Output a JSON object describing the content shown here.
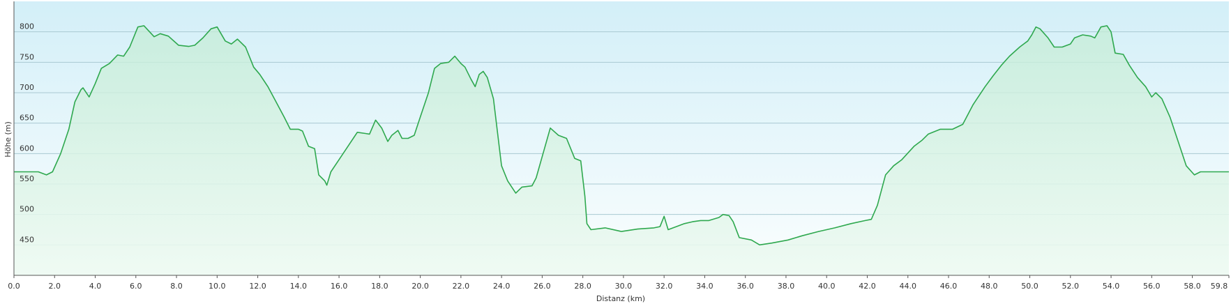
{
  "chart_data": {
    "type": "area",
    "xlabel": "Distanz  (km)",
    "ylabel": "Höhe (m)",
    "color": "#2ea84e",
    "grid": true,
    "xlim": [
      0,
      59.8
    ],
    "ylim": [
      400,
      850
    ],
    "yticks": [
      450,
      500,
      550,
      600,
      650,
      700,
      750,
      800
    ],
    "xticks": [
      {
        "value": 0,
        "label": "0.0"
      },
      {
        "value": 2,
        "label": "2.0"
      },
      {
        "value": 4,
        "label": "4.0"
      },
      {
        "value": 6,
        "label": "6.0"
      },
      {
        "value": 8,
        "label": "8.0"
      },
      {
        "value": 10,
        "label": "10.0"
      },
      {
        "value": 12,
        "label": "12.0"
      },
      {
        "value": 14,
        "label": "14.0"
      },
      {
        "value": 16,
        "label": "16.0"
      },
      {
        "value": 18,
        "label": "18.0"
      },
      {
        "value": 20,
        "label": "20.0"
      },
      {
        "value": 22,
        "label": "22.0"
      },
      {
        "value": 24,
        "label": "24.0"
      },
      {
        "value": 26,
        "label": "26.0"
      },
      {
        "value": 28,
        "label": "28.0"
      },
      {
        "value": 30,
        "label": "30.0"
      },
      {
        "value": 32,
        "label": "32.0"
      },
      {
        "value": 34,
        "label": "34.0"
      },
      {
        "value": 36,
        "label": "36.0"
      },
      {
        "value": 38,
        "label": "38.0"
      },
      {
        "value": 40,
        "label": "40.0"
      },
      {
        "value": 42,
        "label": "42.0"
      },
      {
        "value": 44,
        "label": "44.0"
      },
      {
        "value": 46,
        "label": "46.0"
      },
      {
        "value": 48,
        "label": "48.0"
      },
      {
        "value": 50,
        "label": "50.0"
      },
      {
        "value": 52,
        "label": "52.0"
      },
      {
        "value": 54,
        "label": "54.0"
      },
      {
        "value": 56,
        "label": "56.0"
      },
      {
        "value": 58,
        "label": "58.0"
      },
      59.8
    ],
    "x": [
      0.0,
      1.2,
      1.6,
      1.9,
      2.3,
      2.7,
      3.0,
      3.3,
      3.4,
      3.7,
      4.0,
      4.3,
      4.7,
      5.1,
      5.4,
      5.7,
      6.1,
      6.4,
      6.9,
      7.2,
      7.6,
      8.1,
      8.6,
      8.9,
      9.3,
      9.7,
      10.0,
      10.4,
      10.7,
      11.0,
      11.4,
      11.8,
      12.1,
      12.5,
      12.9,
      13.3,
      13.6,
      14.0,
      14.2,
      14.5,
      14.8,
      15.0,
      15.3,
      15.4,
      15.6,
      16.0,
      16.5,
      16.9,
      17.3,
      17.5,
      17.8,
      18.1,
      18.4,
      18.6,
      18.9,
      19.1,
      19.4,
      19.7,
      20.0,
      20.4,
      20.7,
      21.0,
      21.4,
      21.7,
      22.0,
      22.2,
      22.5,
      22.7,
      22.9,
      23.1,
      23.3,
      23.6,
      24.0,
      24.3,
      24.7,
      25.0,
      25.5,
      25.7,
      26.4,
      26.8,
      27.2,
      27.6,
      27.9,
      28.1,
      28.2,
      28.4,
      29.1,
      29.9,
      30.7,
      31.5,
      31.8,
      32.0,
      32.2,
      32.6,
      33.0,
      33.4,
      33.8,
      34.2,
      34.7,
      34.9,
      35.2,
      35.4,
      35.7,
      36.3,
      36.7,
      37.3,
      38.1,
      38.8,
      39.6,
      40.4,
      41.2,
      41.9,
      42.2,
      42.5,
      42.9,
      43.3,
      43.7,
      44.3,
      44.7,
      45.0,
      45.6,
      46.2,
      46.7,
      47.2,
      47.8,
      48.2,
      48.6,
      49.0,
      49.5,
      49.7,
      49.9,
      50.1,
      50.3,
      50.5,
      50.9,
      51.2,
      51.6,
      52.0,
      52.2,
      52.6,
      53.0,
      53.2,
      53.5,
      53.8,
      54.0,
      54.2,
      54.6,
      54.9,
      55.3,
      55.7,
      56.0,
      56.2,
      56.5,
      56.9,
      57.3,
      57.7,
      58.1,
      58.4,
      59.2,
      59.8
    ],
    "values": [
      570,
      570,
      565,
      570,
      600,
      640,
      685,
      705,
      708,
      693,
      715,
      740,
      748,
      762,
      760,
      775,
      808,
      810,
      792,
      797,
      793,
      778,
      776,
      778,
      790,
      805,
      808,
      785,
      780,
      788,
      775,
      742,
      730,
      710,
      685,
      660,
      640,
      640,
      637,
      612,
      608,
      565,
      555,
      548,
      570,
      590,
      615,
      635,
      633,
      632,
      655,
      642,
      620,
      630,
      638,
      625,
      625,
      630,
      660,
      700,
      740,
      748,
      750,
      760,
      748,
      742,
      722,
      710,
      730,
      735,
      725,
      690,
      580,
      555,
      535,
      545,
      547,
      560,
      642,
      630,
      625,
      592,
      588,
      530,
      485,
      475,
      478,
      472,
      476,
      478,
      480,
      497,
      475,
      480,
      485,
      488,
      490,
      490,
      495,
      500,
      498,
      488,
      462,
      458,
      450,
      453,
      458,
      465,
      472,
      478,
      485,
      490,
      492,
      515,
      565,
      580,
      590,
      612,
      622,
      632,
      640,
      640,
      648,
      680,
      710,
      728,
      745,
      760,
      775,
      780,
      785,
      795,
      808,
      805,
      790,
      775,
      775,
      780,
      790,
      795,
      793,
      790,
      808,
      810,
      800,
      765,
      763,
      745,
      725,
      710,
      693,
      700,
      690,
      660,
      620,
      580,
      565,
      570,
      570,
      570
    ]
  }
}
